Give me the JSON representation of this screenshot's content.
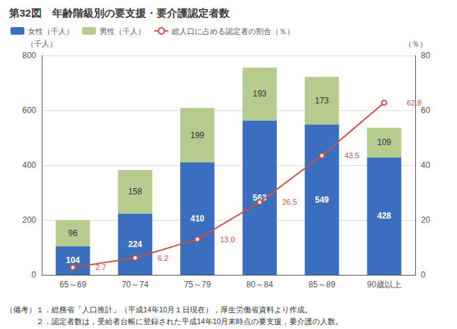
{
  "chart_data": {
    "type": "bar",
    "title": "第32図　年齢階級別の要支援・要介護認定者数",
    "categories": [
      "65～69",
      "70～74",
      "75～79",
      "80～84",
      "85～89",
      "90歳以上"
    ],
    "series": [
      {
        "name": "女性（千人）",
        "type": "bar",
        "color": "#3B6EBE",
        "values": [
          104,
          224,
          410,
          563,
          549,
          428
        ]
      },
      {
        "name": "男性（千人）",
        "type": "bar",
        "color": "#B5CC8E",
        "values": [
          96,
          158,
          199,
          193,
          173,
          109
        ]
      },
      {
        "name": "総人口に占める認定者の割合（％）",
        "type": "line",
        "axis": "y2",
        "color": "#C8524A",
        "marker": "circle",
        "values": [
          2.7,
          6.2,
          13.0,
          26.5,
          43.5,
          62.8
        ],
        "value_labels": [
          "2.7",
          "6.2",
          "13.0",
          "26.5",
          "43.5",
          "62.8"
        ]
      }
    ],
    "stacked": true,
    "data_labels": true,
    "ylabel": "（千人）",
    "y2label": "（％）",
    "ylim": [
      0,
      800
    ],
    "yticks": [
      0,
      200,
      400,
      600,
      800
    ],
    "y2lim": [
      0,
      80
    ],
    "y2ticks": [
      0,
      20,
      40,
      60,
      80
    ],
    "grid": true,
    "legend": "upper left",
    "annotations": [
      "（備考）１．総務省「人口推計」（平成14年10月１日現在），厚生労働省資料より作成。",
      "　　　　２．認定者数は，受給者台帳に登録された平成14年10月末時点の要支援，要介護の人数。"
    ]
  }
}
